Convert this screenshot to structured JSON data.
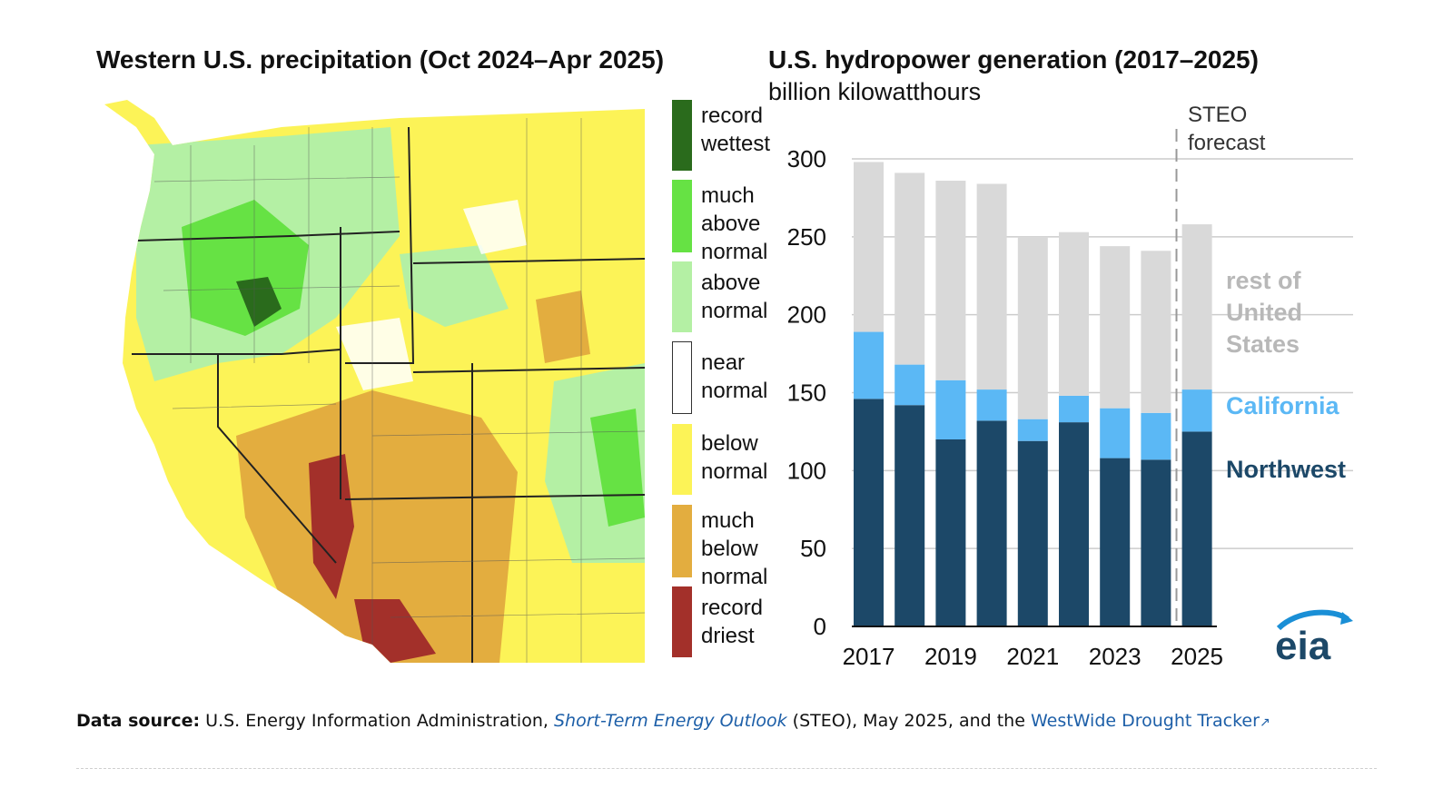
{
  "map": {
    "title": "Western U.S. precipitation (Oct 2024–Apr 2025)",
    "legend": [
      {
        "label": "record wettest",
        "color": "#2a6b1c"
      },
      {
        "label": "much above normal",
        "color": "#66e244"
      },
      {
        "label": "above normal",
        "color": "#b4f0a4"
      },
      {
        "label": "near normal",
        "color": "#ffffff"
      },
      {
        "label": "below normal",
        "color": "#fcf357"
      },
      {
        "label": "much below normal",
        "color": "#e3ad3f"
      },
      {
        "label": "record driest",
        "color": "#a3302a"
      }
    ]
  },
  "chart": {
    "title": "U.S. hydropower generation (2017–2025)",
    "subtitle": "billion kilowatthours",
    "forecast_label_line1": "STEO",
    "forecast_label_line2": "forecast",
    "series_labels": {
      "rest": [
        "rest of",
        "United",
        "States"
      ],
      "california": "California",
      "northwest": "Northwest"
    },
    "logo_text": "eia"
  },
  "chart_data": {
    "type": "bar",
    "stacked": true,
    "categories": [
      "2017",
      "2018",
      "2019",
      "2020",
      "2021",
      "2022",
      "2023",
      "2024",
      "2025"
    ],
    "x_tick_labels": [
      "2017",
      "2019",
      "2021",
      "2023",
      "2025"
    ],
    "y_ticks": [
      0,
      50,
      100,
      150,
      200,
      250,
      300
    ],
    "ylim": [
      0,
      300
    ],
    "title": "U.S. hydropower generation (2017–2025)",
    "ylabel": "billion kilowatthours",
    "forecast_start": "2025",
    "series": [
      {
        "name": "Northwest",
        "color": "#1c4868",
        "values": [
          146,
          142,
          120,
          132,
          119,
          131,
          108,
          107,
          125
        ]
      },
      {
        "name": "California",
        "color": "#5bb8f5",
        "values": [
          43,
          26,
          38,
          20,
          14,
          17,
          32,
          30,
          27
        ]
      },
      {
        "name": "rest of United States",
        "color": "#d9d9d9",
        "values": [
          109,
          123,
          128,
          132,
          117,
          105,
          104,
          104,
          106
        ]
      }
    ],
    "colors": {
      "grid": "#cccccc",
      "axis": "#111111",
      "forecast_line": "#999999"
    }
  },
  "footer": {
    "label": "Data source:",
    "text1": "U.S. Energy Information Administration,",
    "link1": "Short-Term Energy Outlook",
    "text2": "(STEO), May 2025, and the",
    "link2": "WestWide Drought Tracker",
    "link_icon": "external-link-icon"
  }
}
